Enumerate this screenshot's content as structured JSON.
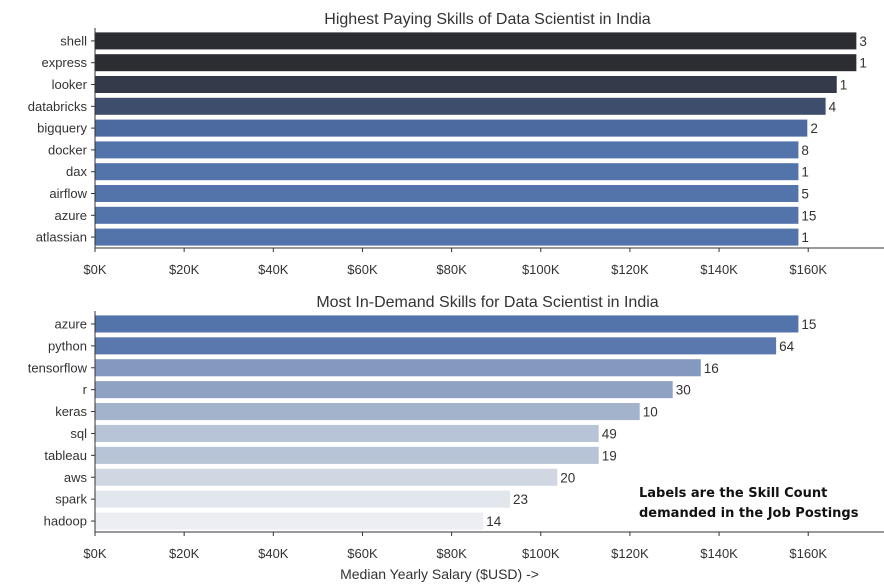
{
  "annotation": "Labels are the Skill Count demanded in the Job Postings",
  "chart_data": [
    {
      "type": "bar",
      "orientation": "horizontal",
      "title": "Highest Paying Skills of Data Scientist in India",
      "xlabel": "",
      "ylabel": "",
      "xlim": [
        0,
        177000
      ],
      "xticks": [
        "$0K",
        "$20K",
        "$40K",
        "$60K",
        "$80K",
        "$100K",
        "$120K",
        "$140K",
        "$160K"
      ],
      "categories": [
        "shell",
        "express",
        "looker",
        "databricks",
        "bigquery",
        "docker",
        "dax",
        "airflow",
        "azure",
        "atlassian"
      ],
      "values": [
        170800,
        170800,
        166400,
        163900,
        159800,
        157800,
        157800,
        157800,
        157800,
        157800
      ],
      "labels": [
        "3",
        "1",
        "1",
        "4",
        "2",
        "8",
        "1",
        "5",
        "15",
        "1"
      ],
      "colors": [
        "#2b2d33",
        "#2b2d33",
        "#343a49",
        "#3e4d6c",
        "#4c6aa0",
        "#5373ab",
        "#5373ab",
        "#5373ab",
        "#5373ab",
        "#5373ab"
      ]
    },
    {
      "type": "bar",
      "orientation": "horizontal",
      "title": "Most In-Demand Skills for Data Scientist in India",
      "xlabel": "Median Yearly Salary ($USD) ->",
      "ylabel": "",
      "xlim": [
        0,
        177000
      ],
      "xticks": [
        "$0K",
        "$20K",
        "$40K",
        "$60K",
        "$80K",
        "$100K",
        "$120K",
        "$140K",
        "$160K"
      ],
      "categories": [
        "azure",
        "python",
        "tensorflow",
        "r",
        "keras",
        "sql",
        "tableau",
        "aws",
        "spark",
        "hadoop"
      ],
      "values": [
        157800,
        152800,
        135900,
        129600,
        122200,
        113000,
        113000,
        103700,
        93100,
        87100
      ],
      "labels": [
        "15",
        "64",
        "16",
        "30",
        "10",
        "49",
        "19",
        "20",
        "23",
        "14"
      ],
      "colors": [
        "#5373ab",
        "#5a78ae",
        "#8399bd",
        "#8fa2c3",
        "#a4b3cc",
        "#b7c3d6",
        "#b7c3d6",
        "#d0d7e2",
        "#e2e6ed",
        "#eceef3"
      ]
    }
  ]
}
